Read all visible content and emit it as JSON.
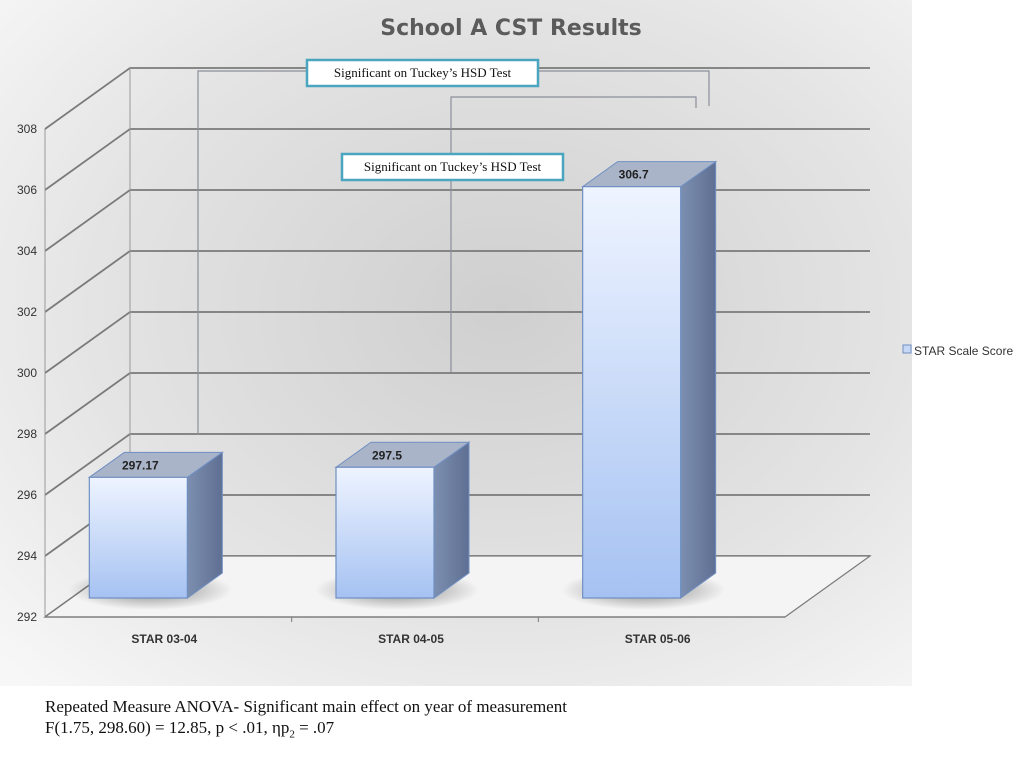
{
  "chart_data": {
    "type": "bar",
    "title": "School A CST Results",
    "categories": [
      "STAR 03-04",
      "STAR 04-05",
      "STAR 05-06"
    ],
    "series": [
      {
        "name": "STAR Scale Score",
        "values": [
          297.17,
          297.5,
          306.7
        ],
        "labels": [
          "297.17",
          "297.5",
          "306.7"
        ]
      }
    ],
    "ylim": [
      292,
      308
    ],
    "yticks": [
      "292",
      "294",
      "296",
      "298",
      "300",
      "302",
      "304",
      "306",
      "308"
    ],
    "grid": true,
    "legend_position": "right",
    "annotations": [
      {
        "text": "Significant on Tuckey’s HSD Test",
        "between": [
          "STAR 03-04",
          "STAR 05-06"
        ]
      },
      {
        "text": "Significant on Tuckey’s HSD Test",
        "between": [
          "STAR 04-05",
          "STAR 05-06"
        ]
      }
    ],
    "colors": {
      "bar": "#a9c4f2",
      "bar_edge": "#6f8fc2",
      "grid": "#7a7a7a",
      "annotation_border": "#4aa5bf"
    }
  },
  "caption": {
    "line1": "Repeated Measure ANOVA- Significant main effect on year of measurement",
    "line2_main": "F(1.75, 298.60) = 12.85, p < .01, ηp",
    "line2_sub": "2",
    "line2_end": " = .07"
  }
}
